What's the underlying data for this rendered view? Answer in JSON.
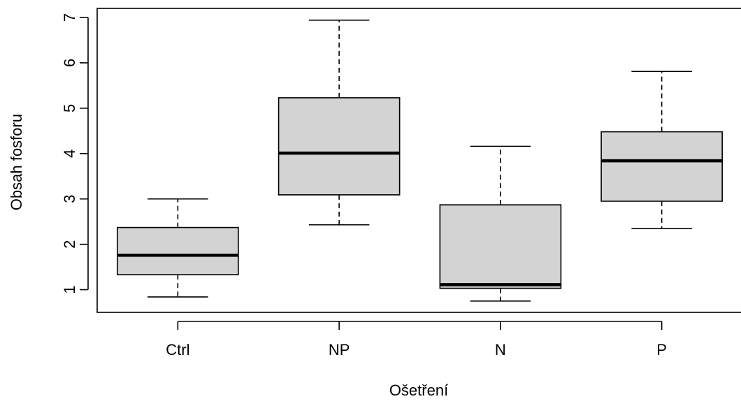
{
  "chart_data": {
    "type": "box",
    "title": "",
    "xlabel": "Ošetření",
    "ylabel": "Obsah fosforu",
    "ylim": [
      0.5,
      7.2
    ],
    "yticks": [
      1,
      2,
      3,
      4,
      5,
      6,
      7
    ],
    "ytick_labels": [
      "1",
      "2",
      "3",
      "4",
      "5",
      "6",
      "7"
    ],
    "categories": [
      "Ctrl",
      "NP",
      "N",
      "P"
    ],
    "boxes": [
      {
        "category": "Ctrl",
        "min": 0.84,
        "q1": 1.33,
        "median": 1.76,
        "q3": 2.37,
        "max": 3.0
      },
      {
        "category": "NP",
        "min": 2.43,
        "q1": 3.09,
        "median": 4.01,
        "q3": 5.23,
        "max": 6.94
      },
      {
        "category": "N",
        "min": 0.75,
        "q1": 1.03,
        "median": 1.11,
        "q3": 2.87,
        "max": 4.16
      },
      {
        "category": "P",
        "min": 2.35,
        "q1": 2.95,
        "median": 3.84,
        "q3": 4.48,
        "max": 5.81
      }
    ],
    "box_fill": "#d3d3d3",
    "line_color": "#000000",
    "grid": false,
    "legend": "none"
  }
}
